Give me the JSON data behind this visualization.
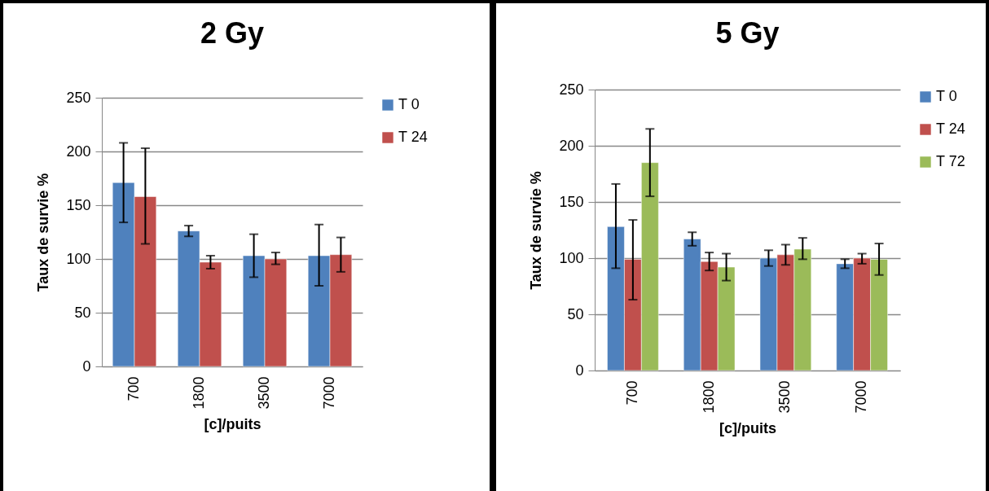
{
  "chart_data": [
    {
      "type": "bar",
      "title": "2 Gy",
      "xlabel": "[c]/puits",
      "ylabel": "Taux de survie %",
      "categories": [
        "700",
        "1800",
        "3500",
        "7000"
      ],
      "ylim": [
        0,
        250
      ],
      "yticks": [
        0,
        50,
        100,
        150,
        200,
        250
      ],
      "grid": "y",
      "legend": "right",
      "series": [
        {
          "name": "T 0",
          "color": "#4f81bd",
          "values": [
            171,
            126,
            103,
            103
          ],
          "errors": [
            [
              134,
              208
            ],
            [
              121,
              131
            ],
            [
              83,
              123
            ],
            [
              75,
              132
            ]
          ]
        },
        {
          "name": "T 24",
          "color": "#c0504d",
          "values": [
            158,
            97,
            100,
            104
          ],
          "errors": [
            [
              114,
              203
            ],
            [
              91,
              103
            ],
            [
              95,
              106
            ],
            [
              88,
              120
            ]
          ]
        }
      ]
    },
    {
      "type": "bar",
      "title": "5 Gy",
      "xlabel": "[c]/puits",
      "ylabel": "Taux de survie %",
      "categories": [
        "700",
        "1800",
        "3500",
        "7000"
      ],
      "ylim": [
        0,
        250
      ],
      "yticks": [
        0,
        50,
        100,
        150,
        200,
        250
      ],
      "grid": "y",
      "legend": "right",
      "series": [
        {
          "name": "T 0",
          "color": "#4f81bd",
          "values": [
            128,
            117,
            100,
            95
          ],
          "errors": [
            [
              91,
              166
            ],
            [
              111,
              123
            ],
            [
              93,
              107
            ],
            [
              91,
              99
            ]
          ]
        },
        {
          "name": "T 24",
          "color": "#c0504d",
          "values": [
            99,
            97,
            103,
            100
          ],
          "errors": [
            [
              63,
              134
            ],
            [
              89,
              105
            ],
            [
              94,
              112
            ],
            [
              95,
              104
            ]
          ]
        },
        {
          "name": "T 72",
          "color": "#9bbb59",
          "values": [
            185,
            92,
            108,
            99
          ],
          "errors": [
            [
              155,
              215
            ],
            [
              80,
              104
            ],
            [
              99,
              118
            ],
            [
              85,
              113
            ]
          ]
        }
      ]
    }
  ]
}
